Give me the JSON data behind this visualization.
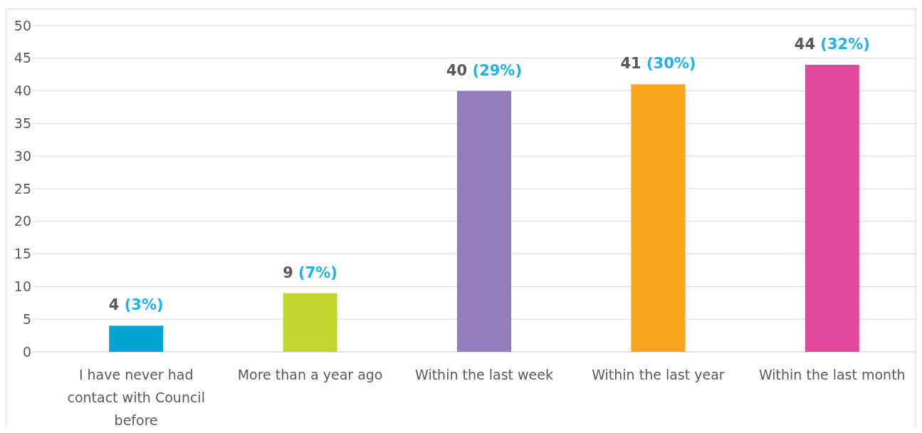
{
  "chart_data": {
    "type": "bar",
    "categories": [
      "I have never had contact with Council before",
      "More than a year ago",
      "Within the last week",
      "Within the last year",
      "Within the last month"
    ],
    "values": [
      4,
      9,
      40,
      41,
      44
    ],
    "colors": [
      "#00a5d2",
      "#c3d52e",
      "#927cba",
      "#f9a51c",
      "#e2489b"
    ],
    "value_labels": [
      "4 (3%)",
      "9 (7%)",
      "40 (29%)",
      "41 (30%)",
      "44 (32%)"
    ],
    "ylim": [
      0,
      50
    ],
    "yticks": [
      0,
      5,
      10,
      15,
      20,
      25,
      30,
      35,
      40,
      45,
      50
    ],
    "grid": "y"
  }
}
